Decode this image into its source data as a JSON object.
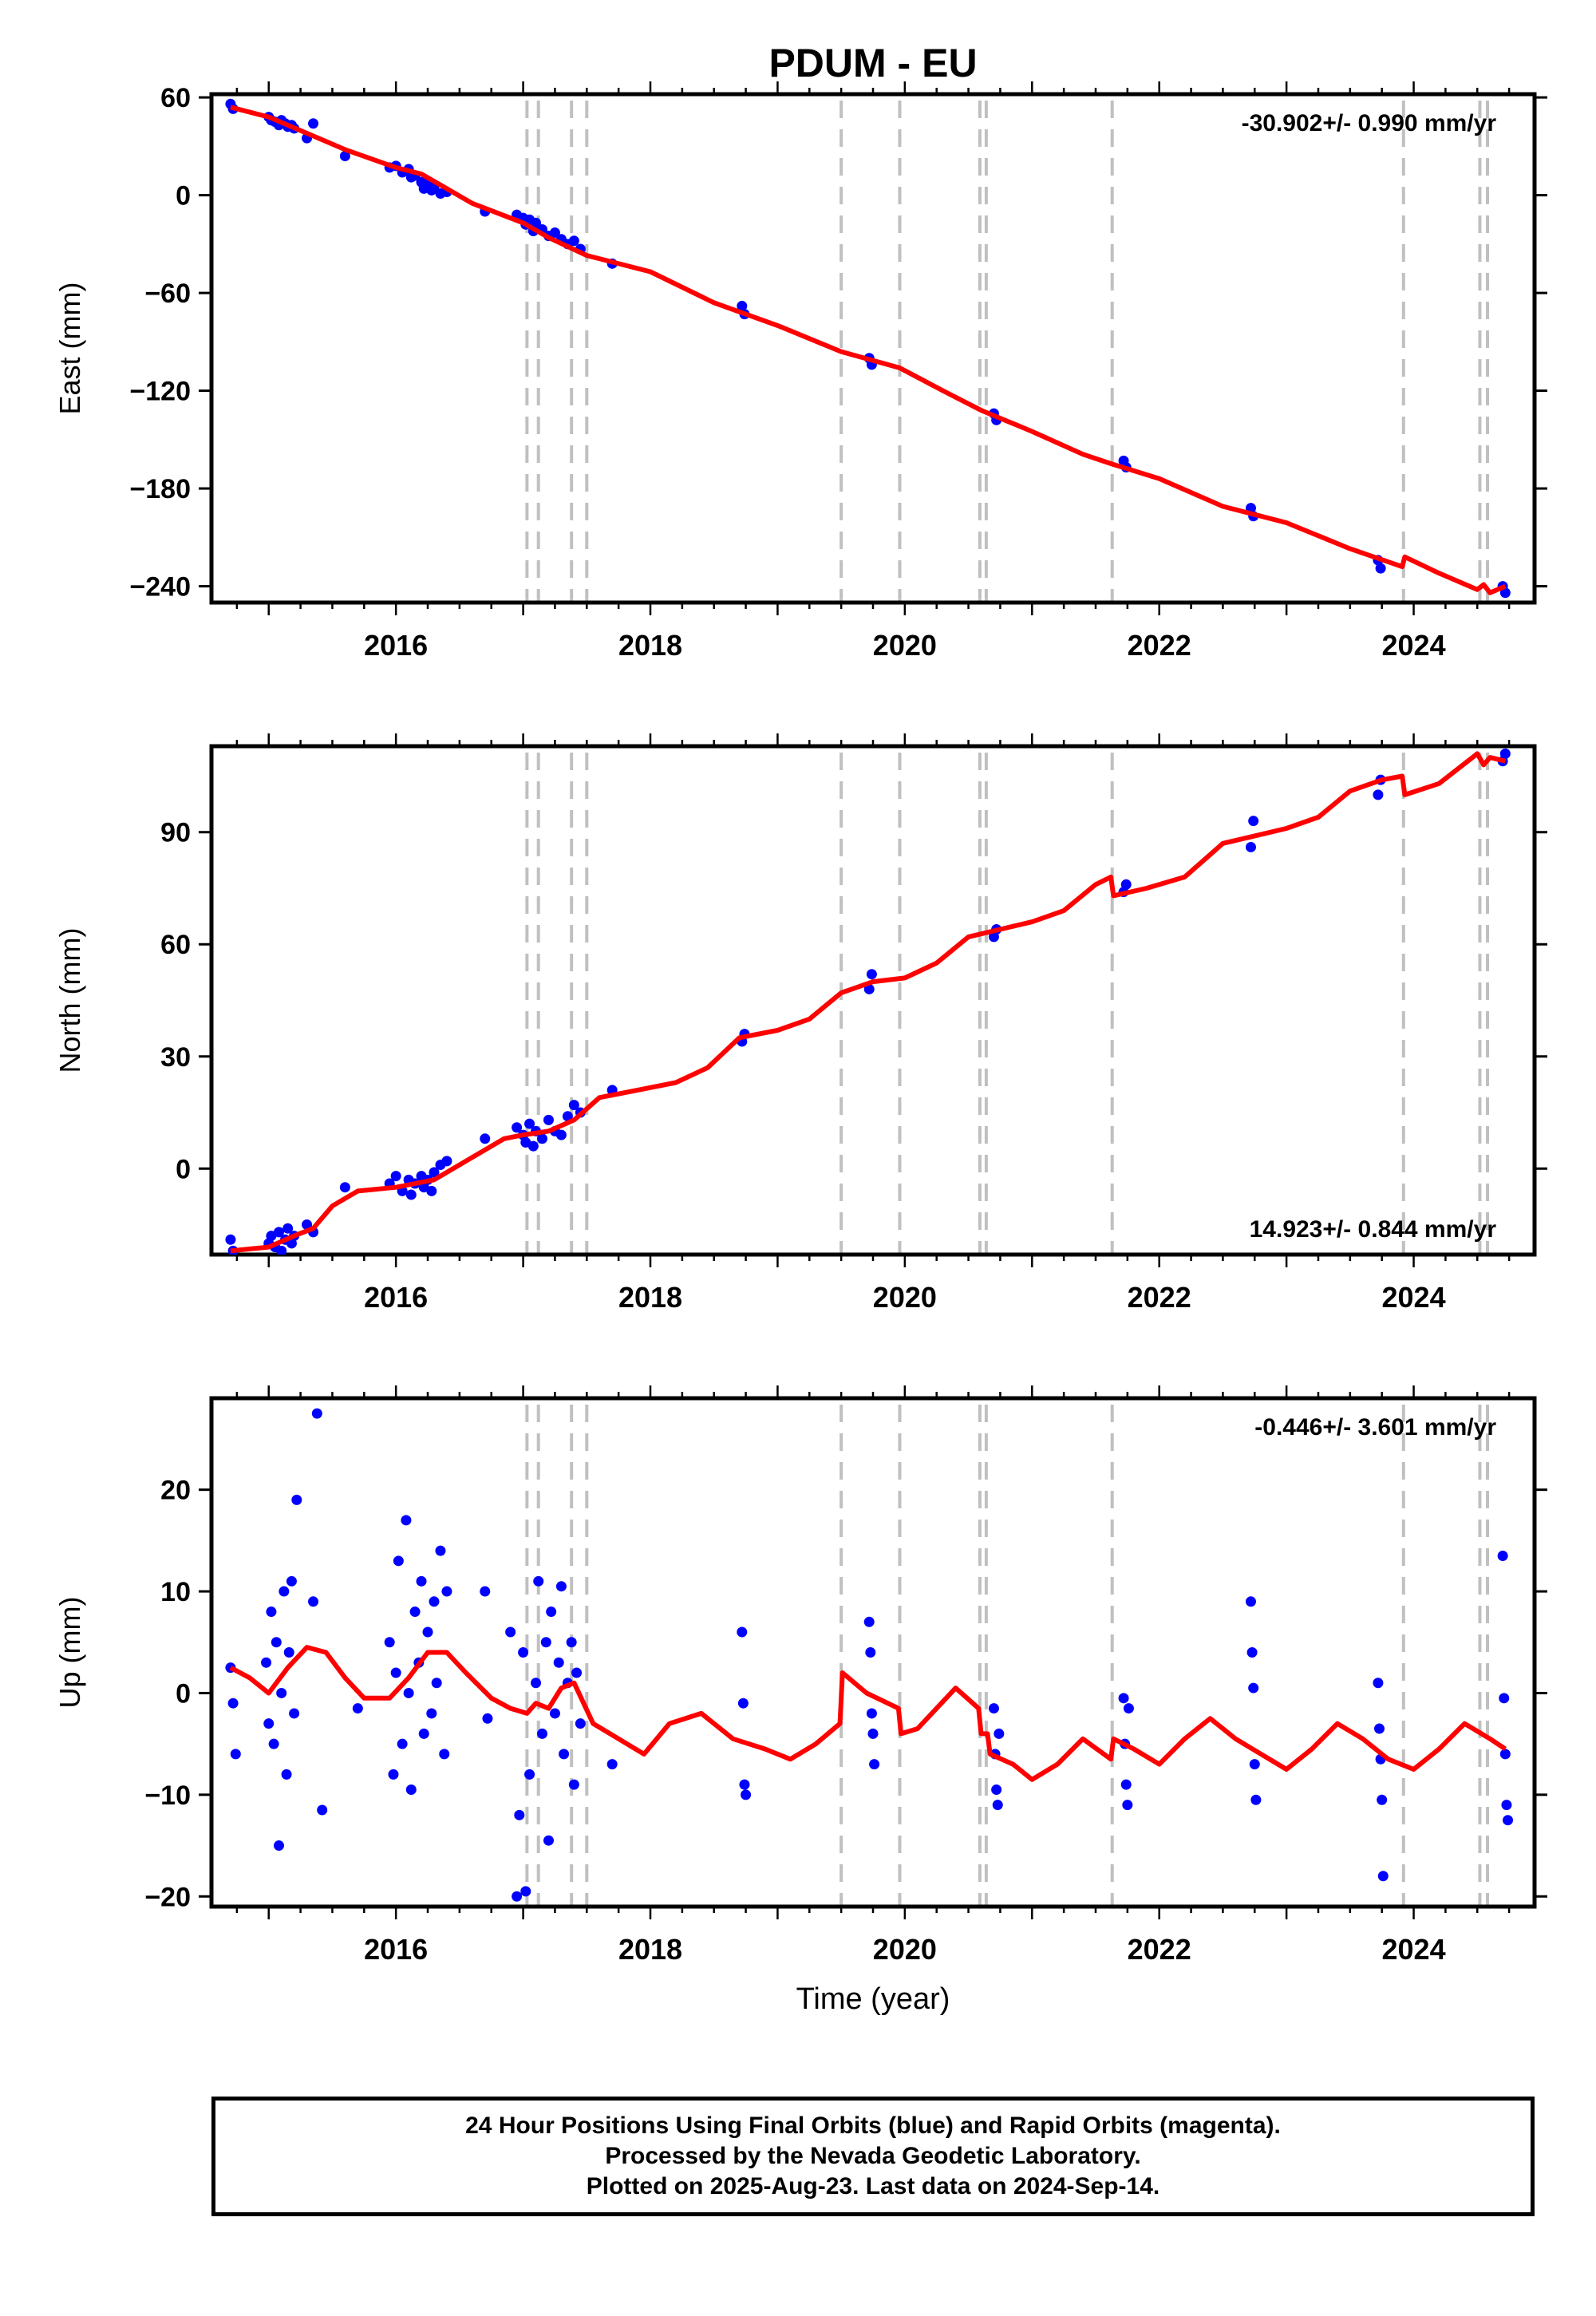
{
  "title": "PDUM - EU",
  "colors": {
    "data": "#0000ff",
    "model": "#ff0000",
    "breaks": "#c0c0c0"
  },
  "footer": {
    "line1": "24 Hour Positions Using Final Orbits (blue) and Rapid Orbits (magenta).",
    "line2": "Processed by the Nevada Geodetic Laboratory.",
    "line3": "Plotted on 2025-Aug-23. Last data on 2024-Sep-14."
  },
  "chart_data": [
    {
      "type": "scatter",
      "component": "east",
      "ylabel": "East (mm)",
      "xlabel": "",
      "xlim": [
        2014.55,
        2024.95
      ],
      "ylim": [
        -250,
        62
      ],
      "yticks": [
        60,
        0,
        -60,
        -120,
        -180,
        -240
      ],
      "ytick_labels": [
        "60",
        "0",
        "−60",
        "−120",
        "−180",
        "−240"
      ],
      "xticks": [
        2016,
        2018,
        2020,
        2022,
        2024
      ],
      "xtick_labels": [
        "2016",
        "2018",
        "2020",
        "2022",
        "2024"
      ],
      "rate": "-30.902+/- 0.990 mm/yr",
      "rate_position": "top-right",
      "break_lines": [
        2017.03,
        2017.12,
        2017.38,
        2017.5,
        2019.5,
        2019.96,
        2020.59,
        2020.64,
        2021.63,
        2023.92,
        2024.52,
        2024.58
      ],
      "model": {
        "x": [
          2014.7,
          2015.0,
          2015.3,
          2015.6,
          2016.0,
          2016.2,
          2016.4,
          2016.6,
          2017.0,
          2017.2,
          2017.5,
          2018.0,
          2018.5,
          2019.0,
          2019.5,
          2019.96,
          2020.3,
          2020.6,
          2021.0,
          2021.4,
          2021.63,
          2022.0,
          2022.5,
          2023.0,
          2023.5,
          2023.91,
          2023.93,
          2024.2,
          2024.5,
          2024.55,
          2024.6,
          2024.72
        ],
        "y": [
          54,
          48,
          38,
          28,
          17,
          13,
          4,
          -5,
          -17,
          -26,
          -37,
          -47,
          -66,
          -80,
          -96,
          -106,
          -120,
          -132,
          -145,
          -159,
          -165,
          -174,
          -191,
          -201,
          -217,
          -228,
          -222,
          -232,
          -242,
          -239,
          -244,
          -240
        ]
      },
      "points": {
        "x": [
          2014.7,
          2014.72,
          2015.0,
          2015.02,
          2015.05,
          2015.08,
          2015.1,
          2015.13,
          2015.15,
          2015.18,
          2015.2,
          2015.3,
          2015.35,
          2015.6,
          2015.95,
          2016.0,
          2016.05,
          2016.1,
          2016.12,
          2016.15,
          2016.2,
          2016.22,
          2016.25,
          2016.28,
          2016.3,
          2016.35,
          2016.4,
          2016.7,
          2016.95,
          2017.0,
          2017.02,
          2017.05,
          2017.08,
          2017.1,
          2017.15,
          2017.2,
          2017.25,
          2017.3,
          2017.35,
          2017.4,
          2017.45,
          2017.7,
          2018.72,
          2018.74,
          2019.72,
          2019.74,
          2020.7,
          2020.72,
          2021.72,
          2021.74,
          2022.72,
          2022.74,
          2023.72,
          2023.74,
          2024.7,
          2024.72
        ],
        "y": [
          56,
          53,
          48,
          46,
          45,
          43,
          46,
          44,
          42,
          43,
          41,
          35,
          44,
          24,
          17,
          18,
          14,
          16,
          11,
          12,
          8,
          4,
          7,
          3,
          5,
          1,
          2,
          -10,
          -12,
          -14,
          -18,
          -15,
          -22,
          -17,
          -21,
          -25,
          -23,
          -27,
          -30,
          -28,
          -33,
          -42,
          -68,
          -73,
          -100,
          -104,
          -134,
          -138,
          -163,
          -167,
          -192,
          -197,
          -224,
          -229,
          -240,
          -244
        ]
      }
    },
    {
      "type": "scatter",
      "component": "north",
      "ylabel": "North (mm)",
      "xlabel": "",
      "xlim": [
        2014.55,
        2024.95
      ],
      "ylim": [
        -23,
        113
      ],
      "yticks": [
        90,
        60,
        30,
        0
      ],
      "ytick_labels": [
        "90",
        "60",
        "30",
        "0"
      ],
      "xticks": [
        2016,
        2018,
        2020,
        2022,
        2024
      ],
      "xtick_labels": [
        "2016",
        "2018",
        "2020",
        "2022",
        "2024"
      ],
      "rate": "14.923+/- 0.844 mm/yr",
      "rate_position": "bottom-right",
      "break_lines": [
        2017.03,
        2017.12,
        2017.38,
        2017.5,
        2019.5,
        2019.96,
        2020.59,
        2020.64,
        2021.63,
        2023.92,
        2024.52,
        2024.58
      ],
      "model": {
        "x": [
          2014.7,
          2015.0,
          2015.2,
          2015.35,
          2015.5,
          2015.7,
          2016.0,
          2016.3,
          2016.6,
          2016.85,
          2017.0,
          2017.2,
          2017.4,
          2017.6,
          2017.9,
          2018.2,
          2018.45,
          2018.7,
          2019.0,
          2019.25,
          2019.5,
          2019.75,
          2020.0,
          2020.25,
          2020.5,
          2020.75,
          2021.0,
          2021.25,
          2021.5,
          2021.62,
          2021.64,
          2021.9,
          2022.2,
          2022.5,
          2022.75,
          2023.0,
          2023.25,
          2023.5,
          2023.75,
          2023.91,
          2023.93,
          2024.2,
          2024.5,
          2024.55,
          2024.6,
          2024.72
        ],
        "y": [
          -22,
          -21,
          -18,
          -16,
          -10,
          -6,
          -5,
          -3,
          3,
          8,
          9,
          10,
          13,
          19,
          21,
          23,
          27,
          35,
          37,
          40,
          47,
          50,
          51,
          55,
          62,
          64,
          66,
          69,
          76,
          78,
          73,
          75,
          78,
          87,
          89,
          91,
          94,
          101,
          104,
          105,
          100,
          103,
          111,
          108,
          110,
          109
        ]
      },
      "points": {
        "x": [
          2014.7,
          2014.72,
          2015.0,
          2015.02,
          2015.05,
          2015.08,
          2015.1,
          2015.13,
          2015.15,
          2015.18,
          2015.2,
          2015.3,
          2015.35,
          2015.6,
          2015.95,
          2016.0,
          2016.05,
          2016.1,
          2016.12,
          2016.15,
          2016.2,
          2016.22,
          2016.25,
          2016.28,
          2016.3,
          2016.35,
          2016.4,
          2016.7,
          2016.95,
          2017.0,
          2017.02,
          2017.05,
          2017.08,
          2017.1,
          2017.15,
          2017.2,
          2017.25,
          2017.3,
          2017.35,
          2017.4,
          2017.45,
          2017.7,
          2018.72,
          2018.74,
          2019.72,
          2019.74,
          2020.7,
          2020.72,
          2021.72,
          2021.74,
          2022.72,
          2022.74,
          2023.72,
          2023.74,
          2024.7,
          2024.72
        ],
        "y": [
          -19,
          -22,
          -20,
          -18,
          -21,
          -17,
          -22,
          -19,
          -16,
          -20,
          -18,
          -15,
          -17,
          -5,
          -4,
          -2,
          -6,
          -3,
          -7,
          -4,
          -2,
          -5,
          -3,
          -6,
          -1,
          1,
          2,
          8,
          11,
          9,
          7,
          12,
          6,
          10,
          8,
          13,
          10,
          9,
          14,
          17,
          15,
          21,
          34,
          36,
          48,
          52,
          62,
          64,
          74,
          76,
          86,
          93,
          100,
          104,
          109,
          111
        ]
      }
    },
    {
      "type": "scatter",
      "component": "up",
      "ylabel": "Up (mm)",
      "xlabel": "Time (year)",
      "xlim": [
        2014.55,
        2024.95
      ],
      "ylim": [
        -21,
        29
      ],
      "yticks": [
        20,
        10,
        0,
        -10,
        -20
      ],
      "ytick_labels": [
        "20",
        "10",
        "0",
        "−10",
        "−20"
      ],
      "xticks": [
        2016,
        2018,
        2020,
        2022,
        2024
      ],
      "xtick_labels": [
        "2016",
        "2018",
        "2020",
        "2022",
        "2024"
      ],
      "rate": "-0.446+/- 3.601 mm/yr",
      "rate_position": "top-right",
      "break_lines": [
        2017.03,
        2017.12,
        2017.38,
        2017.5,
        2019.5,
        2019.96,
        2020.59,
        2020.64,
        2021.63,
        2023.92,
        2024.52,
        2024.58
      ],
      "model": {
        "x": [
          2014.7,
          2014.85,
          2015.0,
          2015.15,
          2015.3,
          2015.45,
          2015.6,
          2015.75,
          2015.95,
          2016.1,
          2016.25,
          2016.4,
          2016.55,
          2016.75,
          2016.9,
          2017.03,
          2017.1,
          2017.2,
          2017.3,
          2017.4,
          2017.55,
          2017.75,
          2017.95,
          2018.15,
          2018.4,
          2018.65,
          2018.9,
          2019.1,
          2019.3,
          2019.49,
          2019.51,
          2019.7,
          2019.95,
          2019.97,
          2020.1,
          2020.4,
          2020.58,
          2020.6,
          2020.65,
          2020.67,
          2020.85,
          2021.0,
          2021.2,
          2021.4,
          2021.62,
          2021.64,
          2021.8,
          2022.0,
          2022.2,
          2022.4,
          2022.6,
          2022.8,
          2023.0,
          2023.2,
          2023.4,
          2023.6,
          2023.8,
          2024.0,
          2024.2,
          2024.4,
          2024.6,
          2024.72
        ],
        "y": [
          2.5,
          1.5,
          0.0,
          2.5,
          4.5,
          4.0,
          1.5,
          -0.5,
          -0.5,
          1.5,
          4.0,
          4.0,
          2.0,
          -0.5,
          -1.5,
          -2.0,
          -1.0,
          -1.5,
          0.5,
          1.0,
          -3.0,
          -4.5,
          -6.0,
          -3.0,
          -2.0,
          -4.5,
          -5.5,
          -6.5,
          -5.0,
          -3.0,
          2.0,
          0.0,
          -1.5,
          -4.0,
          -3.5,
          0.5,
          -1.5,
          -4.0,
          -4.0,
          -6.0,
          -7.0,
          -8.5,
          -7.0,
          -4.5,
          -6.5,
          -4.5,
          -5.5,
          -7.0,
          -4.5,
          -2.5,
          -4.5,
          -6.0,
          -7.5,
          -5.5,
          -3.0,
          -4.5,
          -6.5,
          -7.5,
          -5.5,
          -3.0,
          -4.5,
          -5.5
        ]
      },
      "points": {
        "x": [
          2014.7,
          2014.72,
          2014.74,
          2014.98,
          2015.0,
          2015.02,
          2015.04,
          2015.06,
          2015.08,
          2015.1,
          2015.12,
          2015.14,
          2015.16,
          2015.18,
          2015.2,
          2015.22,
          2015.35,
          2015.38,
          2015.42,
          2015.7,
          2015.95,
          2015.98,
          2016.0,
          2016.02,
          2016.05,
          2016.08,
          2016.1,
          2016.12,
          2016.15,
          2016.18,
          2016.2,
          2016.22,
          2016.25,
          2016.28,
          2016.3,
          2016.32,
          2016.35,
          2016.38,
          2016.4,
          2016.7,
          2016.72,
          2016.9,
          2016.95,
          2016.97,
          2017.0,
          2017.02,
          2017.05,
          2017.1,
          2017.12,
          2017.15,
          2017.18,
          2017.2,
          2017.22,
          2017.25,
          2017.28,
          2017.3,
          2017.32,
          2017.35,
          2017.38,
          2017.4,
          2017.42,
          2017.45,
          2017.7,
          2018.72,
          2018.73,
          2018.74,
          2018.75,
          2019.72,
          2019.73,
          2019.74,
          2019.75,
          2019.76,
          2020.7,
          2020.71,
          2020.72,
          2020.73,
          2020.74,
          2021.72,
          2021.73,
          2021.74,
          2021.75,
          2021.76,
          2022.72,
          2022.73,
          2022.74,
          2022.75,
          2022.76,
          2023.72,
          2023.73,
          2023.74,
          2023.75,
          2023.76,
          2024.7,
          2024.71,
          2024.72,
          2024.73,
          2024.74
        ],
        "y": [
          2.5,
          -1.0,
          -6.0,
          3.0,
          -3.0,
          8.0,
          -5.0,
          5.0,
          -15.0,
          0.0,
          10.0,
          -8.0,
          4.0,
          11.0,
          -2.0,
          19.0,
          9.0,
          27.5,
          -11.5,
          -1.5,
          5.0,
          -8.0,
          2.0,
          13.0,
          -5.0,
          17.0,
          0.0,
          -9.5,
          8.0,
          3.0,
          11.0,
          -4.0,
          6.0,
          -2.0,
          9.0,
          1.0,
          14.0,
          -6.0,
          10.0,
          10.0,
          -2.5,
          6.0,
          -20.0,
          -12.0,
          4.0,
          -19.5,
          -8.0,
          1.0,
          11.0,
          -4.0,
          5.0,
          -14.5,
          8.0,
          -2.0,
          3.0,
          10.5,
          -6.0,
          1.0,
          5.0,
          -9.0,
          2.0,
          -3.0,
          -7.0,
          6.0,
          -1.0,
          -9.0,
          -10.0,
          7.0,
          4.0,
          -2.0,
          -4.0,
          -7.0,
          -1.5,
          -6.0,
          -9.5,
          -11.0,
          -4.0,
          -0.5,
          -5.0,
          -9.0,
          -11.0,
          -1.5,
          9.0,
          4.0,
          0.5,
          -7.0,
          -10.5,
          1.0,
          -3.5,
          -6.5,
          -10.5,
          -18.0,
          13.5,
          -0.5,
          -6.0,
          -11.0,
          -12.5
        ]
      }
    }
  ]
}
